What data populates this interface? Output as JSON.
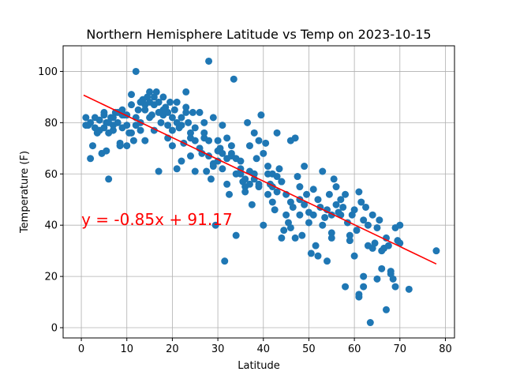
{
  "chart_data": {
    "type": "scatter",
    "title": "Northern Hemisphere Latitude vs Temp on 2023-10-15",
    "xlabel": "Latitude",
    "ylabel": "Temperature (F)",
    "xlim": [
      -4,
      82
    ],
    "ylim": [
      -4,
      110
    ],
    "xticks": [
      0,
      10,
      20,
      30,
      40,
      50,
      60,
      70,
      80
    ],
    "yticks": [
      0,
      20,
      40,
      60,
      80,
      100
    ],
    "grid": true,
    "point_color": "#1f77b4",
    "regression": {
      "slope": -0.85,
      "intercept": 91.17,
      "x_range": [
        0.5,
        78
      ],
      "color": "#ff0000",
      "equation_label": "y = -0.85x + 91.17",
      "label_anchor": [
        0,
        40
      ]
    },
    "points": [
      [
        1,
        82
      ],
      [
        1.5,
        79
      ],
      [
        2,
        66
      ],
      [
        2.5,
        71
      ],
      [
        3,
        78
      ],
      [
        3.5,
        76
      ],
      [
        4,
        81
      ],
      [
        4.5,
        68
      ],
      [
        5,
        78
      ],
      [
        5,
        83
      ],
      [
        5.5,
        69
      ],
      [
        5.5,
        80
      ],
      [
        6,
        76
      ],
      [
        6,
        58
      ],
      [
        6.5,
        82
      ],
      [
        7,
        77
      ],
      [
        7,
        79
      ],
      [
        7.5,
        84
      ],
      [
        8,
        80
      ],
      [
        8.5,
        72
      ],
      [
        8.5,
        71
      ],
      [
        9,
        85
      ],
      [
        9,
        78
      ],
      [
        9.5,
        83
      ],
      [
        10,
        79
      ],
      [
        10,
        71
      ],
      [
        10.5,
        76
      ],
      [
        11,
        91
      ],
      [
        11,
        87
      ],
      [
        11.5,
        73
      ],
      [
        12,
        100
      ],
      [
        12,
        82
      ],
      [
        12.5,
        85
      ],
      [
        13,
        77
      ],
      [
        13,
        80
      ],
      [
        13.5,
        89
      ],
      [
        14,
        85
      ],
      [
        14,
        73
      ],
      [
        14.5,
        90
      ],
      [
        15,
        92
      ],
      [
        15,
        82
      ],
      [
        15.5,
        83
      ],
      [
        16,
        77
      ],
      [
        16,
        87
      ],
      [
        16.5,
        92
      ],
      [
        17,
        88
      ],
      [
        17,
        61
      ],
      [
        17.5,
        80
      ],
      [
        18,
        90
      ],
      [
        18,
        83
      ],
      [
        18.5,
        86
      ],
      [
        19,
        79
      ],
      [
        19,
        74
      ],
      [
        19.5,
        88
      ],
      [
        20,
        82
      ],
      [
        20,
        71
      ],
      [
        20.5,
        85
      ],
      [
        21,
        62
      ],
      [
        21,
        88
      ],
      [
        21.5,
        78
      ],
      [
        22,
        82
      ],
      [
        22,
        65
      ],
      [
        22.5,
        72
      ],
      [
        23,
        92
      ],
      [
        23,
        86
      ],
      [
        23.5,
        80
      ],
      [
        24,
        67
      ],
      [
        24,
        74
      ],
      [
        24.5,
        84
      ],
      [
        25,
        73
      ],
      [
        25,
        61
      ],
      [
        26,
        84
      ],
      [
        26.5,
        68
      ],
      [
        27,
        80
      ],
      [
        27,
        74
      ],
      [
        27.5,
        61
      ],
      [
        28,
        104
      ],
      [
        28,
        67
      ],
      [
        28.5,
        58
      ],
      [
        29,
        82
      ],
      [
        29,
        63
      ],
      [
        29.5,
        40
      ],
      [
        30,
        69
      ],
      [
        30,
        73
      ],
      [
        30.5,
        70
      ],
      [
        31,
        62
      ],
      [
        31,
        79
      ],
      [
        31.5,
        26
      ],
      [
        32,
        74
      ],
      [
        32,
        56
      ],
      [
        32.5,
        52
      ],
      [
        33,
        67
      ],
      [
        33,
        71
      ],
      [
        33.5,
        97
      ],
      [
        34,
        36
      ],
      [
        34,
        60
      ],
      [
        35,
        65
      ],
      [
        35,
        62
      ],
      [
        35.5,
        57
      ],
      [
        36,
        55
      ],
      [
        36,
        53
      ],
      [
        36.5,
        80
      ],
      [
        37,
        71
      ],
      [
        37,
        61
      ],
      [
        37.5,
        48
      ],
      [
        38,
        76
      ],
      [
        38,
        58
      ],
      [
        38.5,
        66
      ],
      [
        39,
        73
      ],
      [
        39,
        55
      ],
      [
        39.5,
        83
      ],
      [
        40,
        40
      ],
      [
        40,
        68
      ],
      [
        40.5,
        72
      ],
      [
        41,
        52
      ],
      [
        41,
        63
      ],
      [
        41.5,
        56
      ],
      [
        42,
        49
      ],
      [
        42,
        55
      ],
      [
        42.5,
        46
      ],
      [
        43,
        76
      ],
      [
        43,
        53
      ],
      [
        43.5,
        62
      ],
      [
        44,
        35
      ],
      [
        44,
        57
      ],
      [
        44.5,
        38
      ],
      [
        45,
        44
      ],
      [
        45,
        52
      ],
      [
        45.5,
        41
      ],
      [
        46,
        73
      ],
      [
        46,
        49
      ],
      [
        46.5,
        47
      ],
      [
        47,
        74
      ],
      [
        47,
        35
      ],
      [
        47.5,
        59
      ],
      [
        48,
        55
      ],
      [
        48,
        44
      ],
      [
        48.5,
        36
      ],
      [
        49,
        63
      ],
      [
        49,
        48
      ],
      [
        49.5,
        52
      ],
      [
        50,
        45
      ],
      [
        50,
        41
      ],
      [
        50.5,
        29
      ],
      [
        51,
        54
      ],
      [
        51,
        44
      ],
      [
        51.5,
        32
      ],
      [
        52,
        28
      ],
      [
        52,
        50
      ],
      [
        52.5,
        47
      ],
      [
        53,
        61
      ],
      [
        53,
        40
      ],
      [
        53.5,
        43
      ],
      [
        54,
        26
      ],
      [
        54,
        46
      ],
      [
        54.5,
        52
      ],
      [
        55,
        37
      ],
      [
        55,
        44
      ],
      [
        55.5,
        58
      ],
      [
        56,
        48
      ],
      [
        56,
        55
      ],
      [
        56.5,
        45
      ],
      [
        57,
        44
      ],
      [
        57,
        50
      ],
      [
        57.5,
        47
      ],
      [
        58,
        16
      ],
      [
        58,
        52
      ],
      [
        58.5,
        41
      ],
      [
        59,
        36
      ],
      [
        59,
        34
      ],
      [
        59.5,
        44
      ],
      [
        60,
        46
      ],
      [
        60,
        28
      ],
      [
        60.5,
        38
      ],
      [
        61,
        13
      ],
      [
        61,
        53
      ],
      [
        61.5,
        49
      ],
      [
        62,
        42
      ],
      [
        62,
        20
      ],
      [
        62.5,
        47
      ],
      [
        63,
        32
      ],
      [
        63,
        40
      ],
      [
        63.5,
        2
      ],
      [
        64,
        44
      ],
      [
        64,
        31
      ],
      [
        64.5,
        33
      ],
      [
        65,
        39
      ],
      [
        65,
        19
      ],
      [
        65.5,
        42
      ],
      [
        66,
        23
      ],
      [
        66,
        30
      ],
      [
        66.5,
        31
      ],
      [
        67,
        35
      ],
      [
        67,
        7
      ],
      [
        67.5,
        32
      ],
      [
        68,
        21
      ],
      [
        68,
        22
      ],
      [
        68.5,
        19
      ],
      [
        69,
        16
      ],
      [
        69,
        39
      ],
      [
        69.5,
        34
      ],
      [
        70,
        40
      ],
      [
        70,
        33
      ],
      [
        72,
        15
      ],
      [
        78,
        30
      ],
      [
        61,
        12
      ],
      [
        62,
        16
      ],
      [
        55,
        35
      ],
      [
        48,
        50
      ],
      [
        46,
        39
      ],
      [
        44,
        57
      ],
      [
        43,
        59
      ],
      [
        42,
        60
      ],
      [
        41,
        60
      ],
      [
        39,
        56
      ],
      [
        38,
        60
      ],
      [
        37,
        56
      ],
      [
        36,
        58
      ],
      [
        35,
        60
      ],
      [
        34,
        66
      ],
      [
        33,
        68
      ],
      [
        32,
        66
      ],
      [
        31,
        68
      ],
      [
        30,
        65
      ],
      [
        29,
        64
      ],
      [
        28,
        73
      ],
      [
        27,
        76
      ],
      [
        26,
        70
      ],
      [
        25,
        78
      ],
      [
        24,
        76
      ],
      [
        23,
        84
      ],
      [
        22,
        79
      ],
      [
        21,
        80
      ],
      [
        20,
        77
      ],
      [
        19,
        84
      ],
      [
        18,
        85
      ],
      [
        17,
        84
      ],
      [
        16,
        90
      ],
      [
        15,
        88
      ],
      [
        14,
        87
      ],
      [
        13,
        88
      ],
      [
        12,
        79
      ],
      [
        11,
        76
      ],
      [
        10,
        83
      ],
      [
        9,
        83
      ],
      [
        8,
        84
      ],
      [
        7,
        82
      ],
      [
        6,
        80
      ],
      [
        5,
        84
      ],
      [
        4,
        77
      ],
      [
        3,
        82
      ],
      [
        2,
        80
      ],
      [
        1,
        79
      ]
    ]
  }
}
